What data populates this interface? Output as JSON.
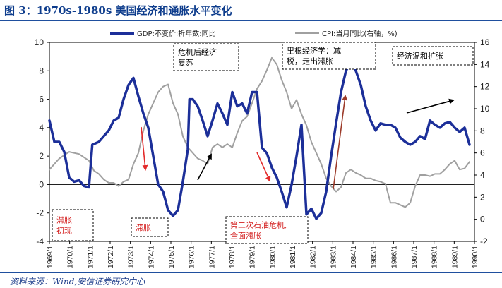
{
  "title": "图 3：1970s-1980s 美国经济和通胀水平变化",
  "source": "资料来源：Wind,安信证券研究中心",
  "colors": {
    "gdp": "#1c2f99",
    "cpi": "#a0a0a0",
    "arrow_red": "#e32b2b",
    "arrow_brown": "#9c3b2a",
    "title": "#0d3c8c"
  },
  "chart_data": {
    "type": "line",
    "title": "",
    "xlabel": "",
    "ylabel_left": "",
    "ylabel_right": "",
    "ylim_left": [
      -4,
      10
    ],
    "ylim_right": [
      -2,
      16
    ],
    "yticks_left": [
      -4,
      -2,
      0,
      2,
      4,
      6,
      8,
      10
    ],
    "yticks_right": [
      -2,
      0,
      2,
      4,
      6,
      8,
      10,
      12,
      14,
      16
    ],
    "x_ticks": [
      "1969/1",
      "1970/1",
      "1971/1",
      "1972/1",
      "1973/1",
      "1974/1",
      "1975/1",
      "1976/1",
      "1977/1",
      "1978/1",
      "1979/1",
      "1980/1",
      "1981/1",
      "1982/1",
      "1983/1",
      "1984/1",
      "1985/1",
      "1986/1",
      "1987/1",
      "1988/1",
      "1989/1",
      "1990/1"
    ],
    "grid": false,
    "legend": "top",
    "series": [
      {
        "name": "GDP:不变价:折年数:同比",
        "axis": "left",
        "points": [
          [
            "1969/1",
            4.5
          ],
          [
            "1969/4",
            3.0
          ],
          [
            "1969/7",
            3.0
          ],
          [
            "1969/10",
            2.3
          ],
          [
            "1970/1",
            0.5
          ],
          [
            "1970/4",
            0.2
          ],
          [
            "1970/7",
            0.3
          ],
          [
            "1970/10",
            -0.1
          ],
          [
            "1971/1",
            -0.2
          ],
          [
            "1971/3",
            2.8
          ],
          [
            "1971/7",
            3.0
          ],
          [
            "1971/10",
            3.4
          ],
          [
            "1972/1",
            3.8
          ],
          [
            "1972/4",
            4.5
          ],
          [
            "1972/7",
            4.7
          ],
          [
            "1972/10",
            6.0
          ],
          [
            "1973/1",
            7.0
          ],
          [
            "1973/4",
            7.5
          ],
          [
            "1973/7",
            6.2
          ],
          [
            "1973/10",
            5.0
          ],
          [
            "1974/1",
            4.0
          ],
          [
            "1974/4",
            2.0
          ],
          [
            "1974/7",
            0.0
          ],
          [
            "1974/10",
            -0.5
          ],
          [
            "1975/1",
            -1.8
          ],
          [
            "1975/4",
            -2.2
          ],
          [
            "1975/7",
            -1.8
          ],
          [
            "1975/10",
            0.2
          ],
          [
            "1976/1",
            2.5
          ],
          [
            "1976/2",
            6.0
          ],
          [
            "1976/4",
            6.0
          ],
          [
            "1976/7",
            5.5
          ],
          [
            "1976/10",
            4.5
          ],
          [
            "1977/1",
            3.4
          ],
          [
            "1977/4",
            4.5
          ],
          [
            "1977/7",
            5.7
          ],
          [
            "1977/10",
            5.0
          ],
          [
            "1978/1",
            4.2
          ],
          [
            "1978/4",
            6.5
          ],
          [
            "1978/7",
            5.5
          ],
          [
            "1978/10",
            5.7
          ],
          [
            "1979/1",
            5.0
          ],
          [
            "1979/4",
            6.5
          ],
          [
            "1979/7",
            6.5
          ],
          [
            "1979/10",
            2.6
          ],
          [
            "1980/1",
            2.2
          ],
          [
            "1980/4",
            1.2
          ],
          [
            "1980/7",
            0.5
          ],
          [
            "1980/10",
            -0.5
          ],
          [
            "1981/1",
            -1.6
          ],
          [
            "1981/4",
            0.0
          ],
          [
            "1981/7",
            2.0
          ],
          [
            "1981/10",
            4.2
          ],
          [
            "1982/1",
            -2.1
          ],
          [
            "1982/4",
            -1.7
          ],
          [
            "1982/7",
            -2.4
          ],
          [
            "1982/10",
            -2.0
          ],
          [
            "1983/1",
            -0.5
          ],
          [
            "1983/4",
            2.0
          ],
          [
            "1983/7",
            4.3
          ],
          [
            "1983/10",
            6.5
          ],
          [
            "1984/1",
            8.0
          ],
          [
            "1984/4",
            8.6
          ],
          [
            "1984/7",
            8.0
          ],
          [
            "1984/10",
            7.0
          ],
          [
            "1985/1",
            5.5
          ],
          [
            "1985/4",
            4.5
          ],
          [
            "1985/7",
            3.8
          ],
          [
            "1985/10",
            4.3
          ],
          [
            "1986/1",
            4.2
          ],
          [
            "1986/4",
            4.2
          ],
          [
            "1986/7",
            4.0
          ],
          [
            "1986/10",
            3.3
          ],
          [
            "1987/1",
            3.0
          ],
          [
            "1987/4",
            2.8
          ],
          [
            "1987/7",
            3.0
          ],
          [
            "1987/10",
            3.4
          ],
          [
            "1988/1",
            3.2
          ],
          [
            "1988/4",
            4.5
          ],
          [
            "1988/7",
            4.2
          ],
          [
            "1988/10",
            4.0
          ],
          [
            "1989/1",
            4.3
          ],
          [
            "1989/4",
            4.4
          ],
          [
            "1989/7",
            4.0
          ],
          [
            "1989/10",
            3.7
          ],
          [
            "1990/1",
            4.0
          ],
          [
            "1990/4",
            2.8
          ]
        ]
      },
      {
        "name": "CPI:当月同比(右轴，%)",
        "axis": "right",
        "points": [
          [
            "1969/1",
            4.5
          ],
          [
            "1969/4",
            5.0
          ],
          [
            "1969/7",
            5.5
          ],
          [
            "1969/10",
            5.8
          ],
          [
            "1970/1",
            6.1
          ],
          [
            "1970/4",
            6.0
          ],
          [
            "1970/7",
            5.9
          ],
          [
            "1970/10",
            5.6
          ],
          [
            "1971/1",
            5.3
          ],
          [
            "1971/4",
            4.4
          ],
          [
            "1971/7",
            4.1
          ],
          [
            "1971/10",
            3.6
          ],
          [
            "1972/1",
            3.3
          ],
          [
            "1972/4",
            3.3
          ],
          [
            "1972/7",
            3.0
          ],
          [
            "1972/10",
            3.4
          ],
          [
            "1973/1",
            3.6
          ],
          [
            "1973/4",
            5.0
          ],
          [
            "1973/7",
            6.0
          ],
          [
            "1973/10",
            8.0
          ],
          [
            "1974/1",
            9.5
          ],
          [
            "1974/4",
            10.5
          ],
          [
            "1974/7",
            11.5
          ],
          [
            "1974/10",
            12.0
          ],
          [
            "1975/1",
            12.2
          ],
          [
            "1975/4",
            10.5
          ],
          [
            "1975/7",
            9.5
          ],
          [
            "1975/10",
            7.5
          ],
          [
            "1976/1",
            6.5
          ],
          [
            "1976/4",
            6.0
          ],
          [
            "1976/7",
            5.5
          ],
          [
            "1976/10",
            5.3
          ],
          [
            "1977/1",
            5.0
          ],
          [
            "1977/4",
            6.5
          ],
          [
            "1977/7",
            6.8
          ],
          [
            "1977/10",
            6.5
          ],
          [
            "1978/1",
            6.8
          ],
          [
            "1978/4",
            6.5
          ],
          [
            "1978/7",
            7.8
          ],
          [
            "1978/10",
            8.9
          ],
          [
            "1979/1",
            9.3
          ],
          [
            "1979/4",
            10.5
          ],
          [
            "1979/7",
            11.8
          ],
          [
            "1979/10",
            12.5
          ],
          [
            "1980/1",
            13.5
          ],
          [
            "1980/4",
            14.6
          ],
          [
            "1980/7",
            14.0
          ],
          [
            "1980/10",
            12.6
          ],
          [
            "1981/1",
            11.5
          ],
          [
            "1981/4",
            10.0
          ],
          [
            "1981/7",
            10.8
          ],
          [
            "1981/10",
            9.5
          ],
          [
            "1982/1",
            8.5
          ],
          [
            "1982/4",
            7.0
          ],
          [
            "1982/7",
            6.0
          ],
          [
            "1982/10",
            5.0
          ],
          [
            "1983/1",
            3.7
          ],
          [
            "1983/4",
            3.0
          ],
          [
            "1983/7",
            2.5
          ],
          [
            "1983/10",
            2.9
          ],
          [
            "1984/1",
            4.2
          ],
          [
            "1984/4",
            4.5
          ],
          [
            "1984/7",
            4.2
          ],
          [
            "1984/10",
            4.0
          ],
          [
            "1985/1",
            3.7
          ],
          [
            "1985/4",
            3.7
          ],
          [
            "1985/7",
            3.5
          ],
          [
            "1985/10",
            3.4
          ],
          [
            "1986/1",
            3.2
          ],
          [
            "1986/4",
            1.5
          ],
          [
            "1986/7",
            1.5
          ],
          [
            "1986/10",
            1.3
          ],
          [
            "1987/1",
            1.1
          ],
          [
            "1987/4",
            1.5
          ],
          [
            "1987/7",
            3.0
          ],
          [
            "1987/10",
            4.0
          ],
          [
            "1988/1",
            4.0
          ],
          [
            "1988/4",
            3.9
          ],
          [
            "1988/7",
            4.1
          ],
          [
            "1988/10",
            4.1
          ],
          [
            "1989/1",
            4.5
          ],
          [
            "1989/4",
            5.0
          ],
          [
            "1989/7",
            5.3
          ],
          [
            "1989/10",
            4.5
          ],
          [
            "1990/1",
            4.6
          ],
          [
            "1990/4",
            5.2
          ]
        ]
      }
    ],
    "annotations": [
      {
        "text": [
          "滞胀",
          "初现"
        ],
        "style": "red"
      },
      {
        "text": [
          "滞胀"
        ],
        "style": "red"
      },
      {
        "text": [
          "危机后经济",
          "复苏"
        ],
        "style": "black"
      },
      {
        "text": [
          "第二次石油危机,",
          "全面滞胀"
        ],
        "style": "red"
      },
      {
        "text": [
          "里根经济学：减",
          "税，走出滞胀"
        ],
        "style": "black"
      },
      {
        "text": [
          "经济温和扩张"
        ],
        "style": "black"
      }
    ]
  }
}
